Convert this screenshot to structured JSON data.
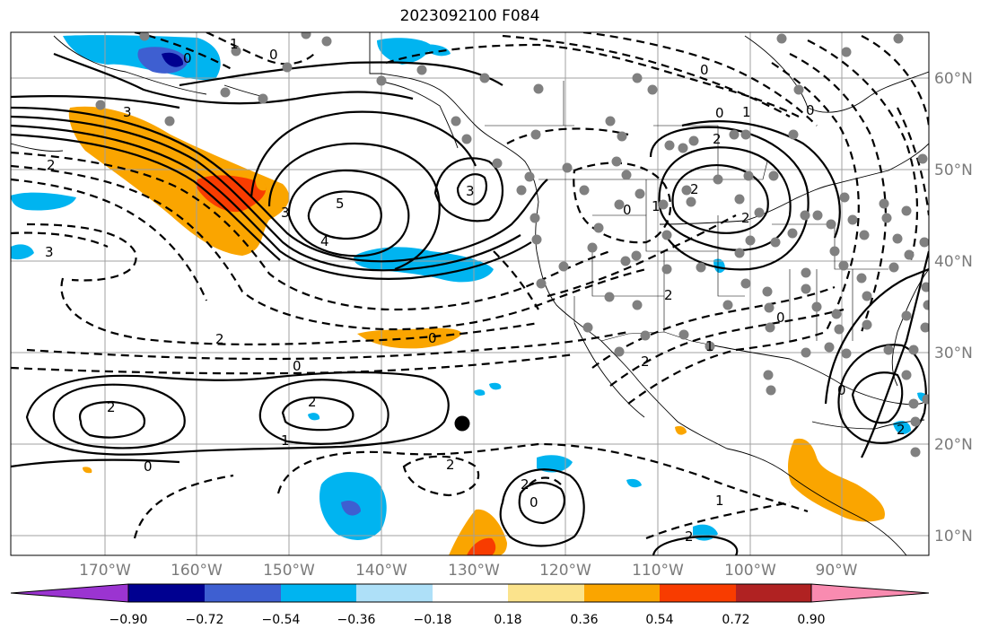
{
  "title": "2023092100 F084",
  "lon_labels": [
    "170°W",
    "160°W",
    "150°W",
    "140°W",
    "130°W",
    "120°W",
    "110°W",
    "100°W",
    "90°W"
  ],
  "lat_labels": [
    "60°N",
    "50°N",
    "40°N",
    "30°N",
    "20°N",
    "10°N"
  ],
  "colorbar": {
    "ticks": [
      "−0.90",
      "−0.72",
      "−0.54",
      "−0.36",
      "−0.18",
      "0.18",
      "0.36",
      "0.54",
      "0.72",
      "0.90"
    ],
    "colors": [
      "#9b34d1",
      "#000090",
      "#3e5fd1",
      "#00b4f0",
      "#aee0f8",
      "#ffffff",
      "#fbe38c",
      "#faa500",
      "#f83c00",
      "#b02222",
      "#f98bb0"
    ]
  },
  "contour_labels": [
    "1",
    "0",
    "0",
    "3",
    "2",
    "3",
    "5",
    "4",
    "3",
    "2",
    "0",
    "2",
    "2",
    "1",
    "0",
    "2",
    "2",
    "0",
    "3",
    "2",
    "2",
    "0",
    "1",
    "2",
    "1",
    "0",
    "2",
    "2",
    "1",
    "0",
    "0",
    "1",
    "0",
    "2",
    "2",
    "0",
    "0"
  ],
  "colors": {
    "grid": "#a0a0a0",
    "coast": "#000000",
    "station": "#808080"
  }
}
